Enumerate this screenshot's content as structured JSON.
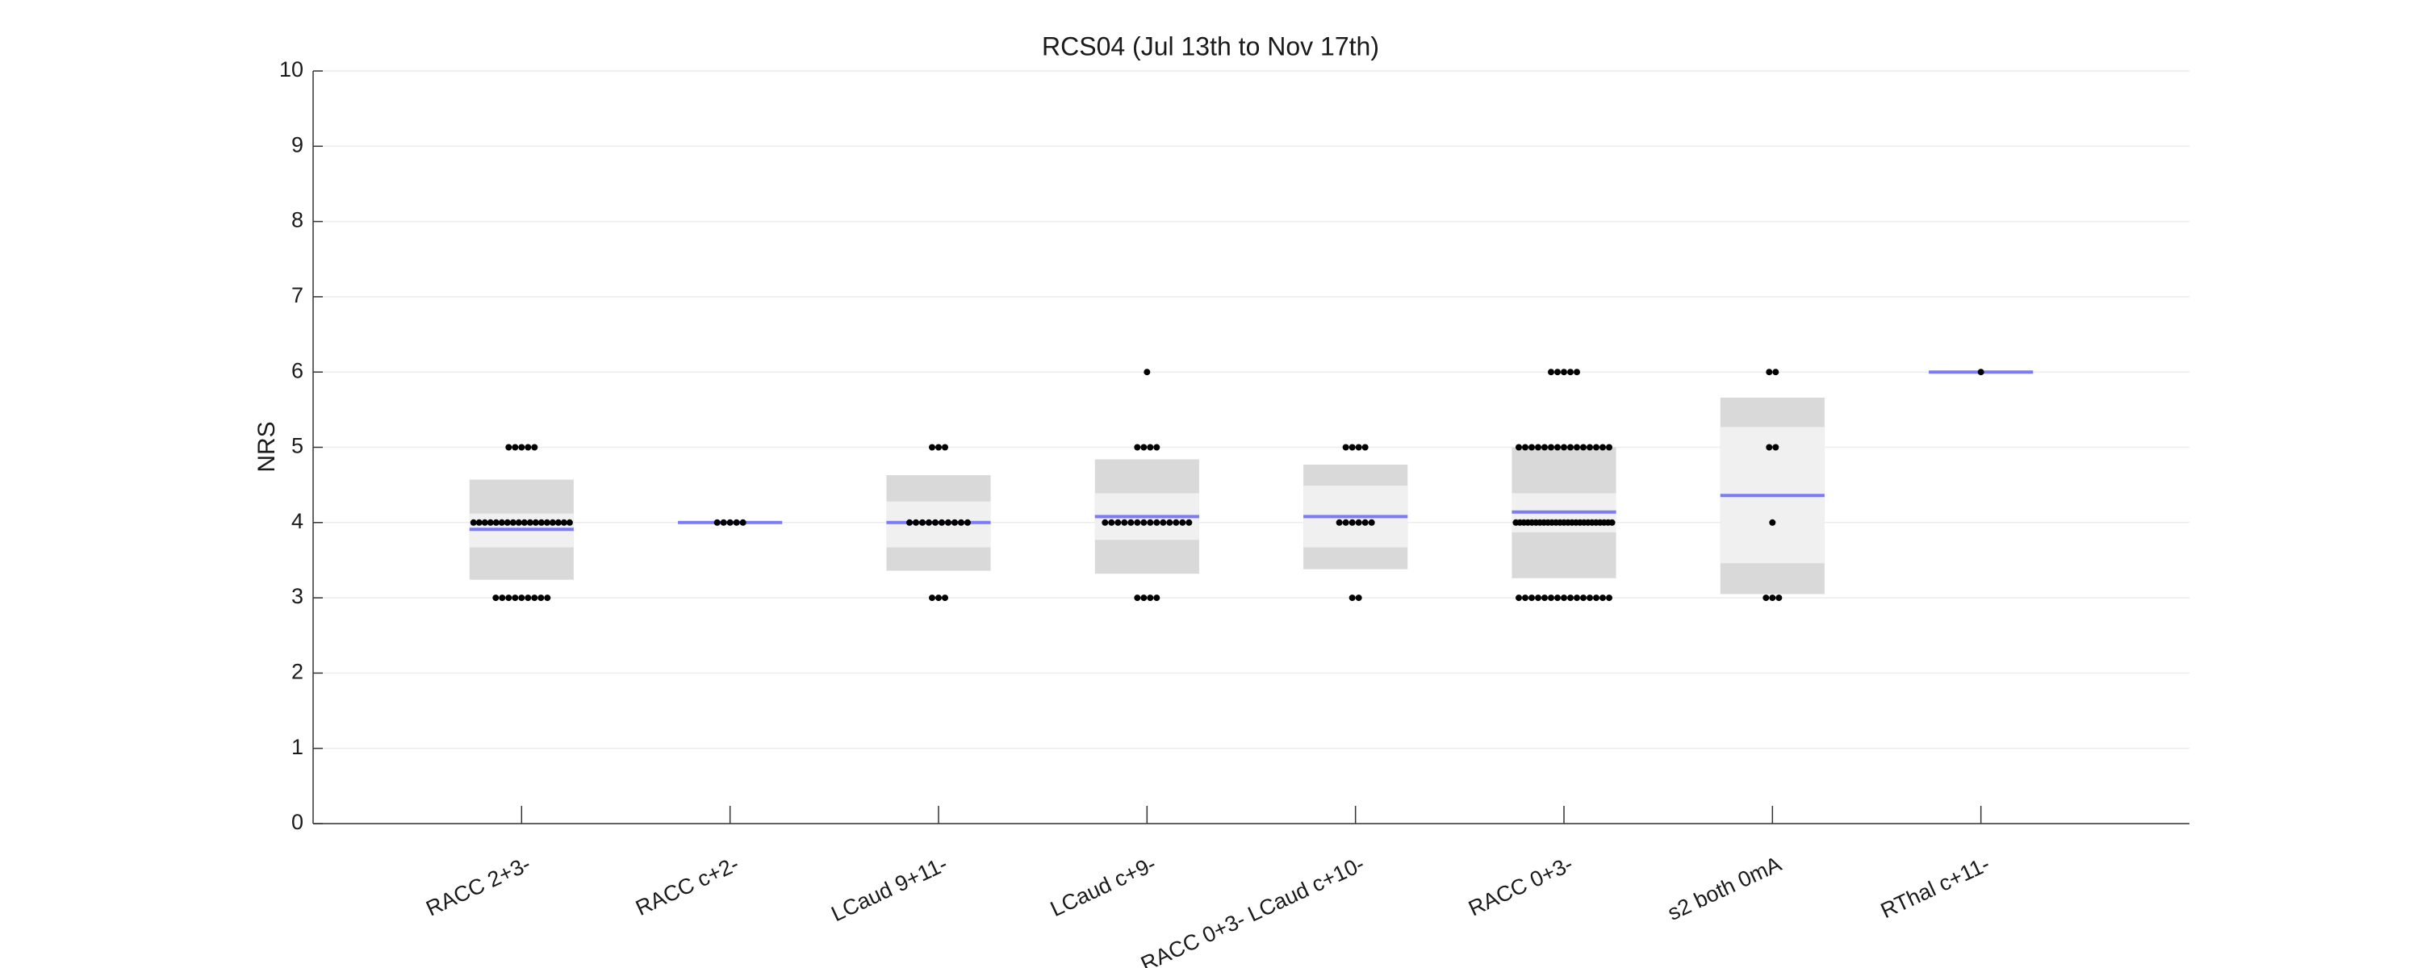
{
  "chart_data": {
    "type": "notboxplot",
    "title": "RCS04 (Jul 13th to Nov 17th)",
    "y_label": "NRS",
    "categories": [
      "RACC 2+3-",
      "RACC c+2-",
      "LCaud 9+11-",
      "LCaud c+9-",
      "RACC 0+3- LCaud c+10-",
      "RACC 0+3-",
      "s2 both 0mA",
      "RThal c+11-"
    ],
    "means": [
      3.91,
      4,
      4.0,
      4.08,
      4.08,
      4.14,
      4.36,
      6
    ],
    "sd": [
      [
        3.24,
        4.57
      ],
      null,
      [
        3.36,
        4.63
      ],
      [
        3.32,
        4.84
      ],
      [
        3.38,
        4.77
      ],
      [
        3.26,
        5.0
      ],
      [
        3.05,
        5.66
      ],
      null
    ],
    "ci": [
      [
        3.67,
        4.12
      ],
      null,
      [
        3.67,
        4.28
      ],
      [
        3.77,
        4.39
      ],
      [
        3.67,
        4.49
      ],
      [
        3.87,
        4.39
      ],
      [
        3.46,
        5.27
      ],
      null
    ],
    "points": [
      [
        5,
        5,
        5,
        5,
        5,
        4,
        4,
        4,
        4,
        4,
        4,
        4,
        4,
        4,
        4,
        4,
        4,
        4,
        4,
        4,
        4,
        4,
        4,
        3,
        3,
        3,
        3,
        3,
        3,
        3,
        3,
        3
      ],
      [
        4,
        4,
        4,
        4,
        4
      ],
      [
        5,
        5,
        5,
        4,
        4,
        4,
        4,
        4,
        4,
        4,
        4,
        4,
        4,
        3,
        3,
        3
      ],
      [
        6,
        5,
        5,
        5,
        5,
        4,
        4,
        4,
        4,
        4,
        4,
        4,
        4,
        4,
        4,
        4,
        4,
        4,
        4,
        3,
        3,
        3,
        3
      ],
      [
        5,
        5,
        5,
        5,
        4,
        4,
        4,
        4,
        4,
        4,
        3,
        3
      ],
      [
        6,
        6,
        6,
        6,
        6,
        5,
        5,
        5,
        5,
        5,
        5,
        5,
        5,
        5,
        5,
        5,
        5,
        5,
        5,
        5,
        4,
        4,
        4,
        4,
        4,
        4,
        4,
        4,
        4,
        4,
        4,
        4,
        4,
        4,
        4,
        4,
        4,
        4,
        4,
        4,
        4,
        4,
        4,
        4,
        4,
        3,
        3,
        3,
        3,
        3,
        3,
        3,
        3,
        3,
        3,
        3,
        3,
        3,
        3,
        3
      ],
      [
        6,
        6,
        5,
        5,
        4,
        3,
        3,
        3
      ],
      [
        6
      ]
    ],
    "mean_color": "#7b7bf5",
    "sd_color": "#d9d9d9",
    "ci_color": "#f0f0f0",
    "point_color": "#000000",
    "xlim": [
      0,
      9
    ],
    "ylim": [
      0,
      10
    ],
    "yticks": [
      0,
      1,
      2,
      3,
      4,
      5,
      6,
      7,
      8,
      9,
      10
    ],
    "grid": true
  }
}
